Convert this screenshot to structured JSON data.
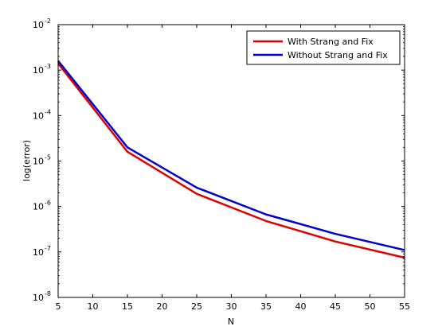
{
  "chart_data": {
    "type": "line",
    "title": "",
    "xlabel": "N",
    "ylabel": "log(error)",
    "xlim": [
      5,
      55
    ],
    "ylim": [
      1e-08,
      0.01
    ],
    "yscale": "log",
    "grid": false,
    "legend_position": "top-right",
    "x_ticks": [
      5,
      10,
      15,
      20,
      25,
      30,
      35,
      40,
      45,
      50,
      55
    ],
    "y_ticks": [
      {
        "value": 1e-08,
        "base": "10",
        "exp": "-8"
      },
      {
        "value": 1e-07,
        "base": "10",
        "exp": "-7"
      },
      {
        "value": 1e-06,
        "base": "10",
        "exp": "-6"
      },
      {
        "value": 1e-05,
        "base": "10",
        "exp": "-5"
      },
      {
        "value": 0.0001,
        "base": "10",
        "exp": "-4"
      },
      {
        "value": 0.001,
        "base": "10",
        "exp": "-3"
      },
      {
        "value": 0.01,
        "base": "10",
        "exp": "-2"
      }
    ],
    "x": [
      5,
      15,
      25,
      35,
      45,
      55
    ],
    "series": [
      {
        "name": "With Strang and Fix",
        "color": "#e00000",
        "values": [
          0.0014,
          1.6e-05,
          1.9e-06,
          4.8e-07,
          1.7e-07,
          7.5e-08
        ]
      },
      {
        "name": "Without Strang and Fix",
        "color": "#0000d0",
        "values": [
          0.0016,
          2e-05,
          2.6e-06,
          6.7e-07,
          2.5e-07,
          1.1e-07
        ]
      }
    ]
  }
}
